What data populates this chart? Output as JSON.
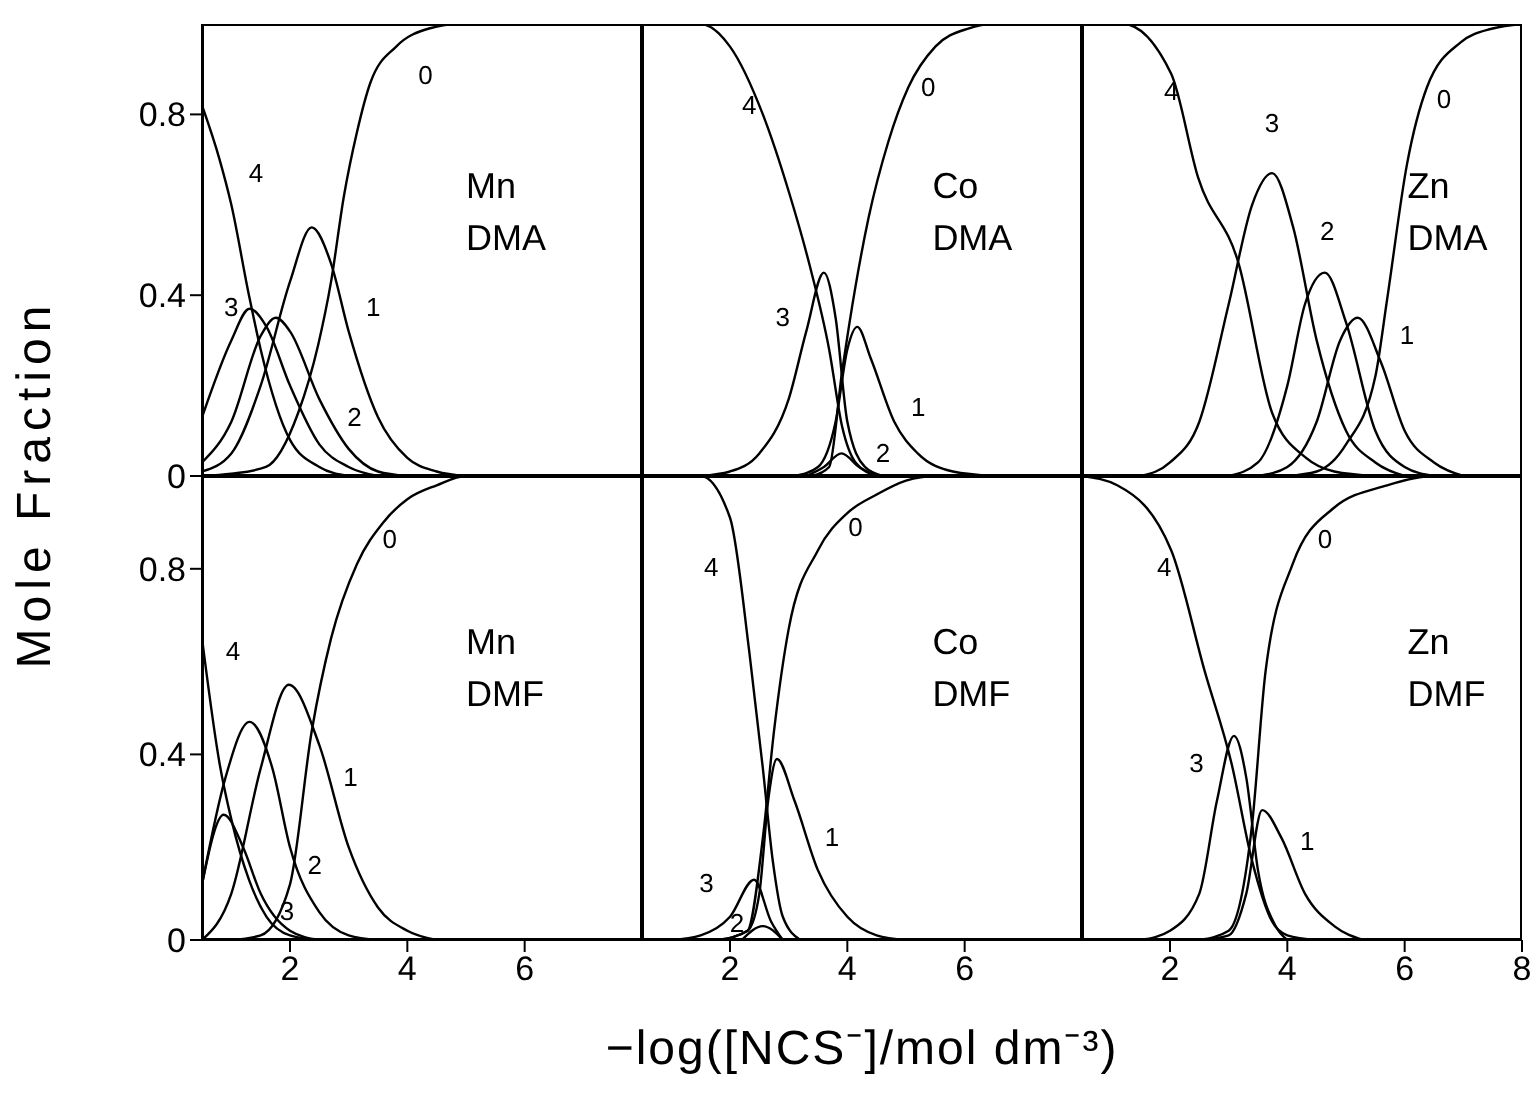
{
  "chart_data": [
    {
      "type": "line",
      "ylabel": "Mole Fraction",
      "xlim": [
        0.5,
        8
      ],
      "xticks": [
        2,
        4,
        6
      ],
      "ylim": [
        0,
        1
      ],
      "yticks": [
        0,
        0.4,
        0.8
      ],
      "tick_labels": "y",
      "annotations": [
        "Mn",
        "DMA"
      ],
      "series": [
        {
          "name": "0",
          "color": "#000000",
          "x": [
            0.5,
            1.0,
            1.59,
            2.14,
            2.48,
            2.7,
            2.92,
            3.14,
            3.37,
            3.81,
            4.37,
            4.9,
            8
          ],
          "values": [
            0,
            0.005,
            0.02,
            0.14,
            0.29,
            0.43,
            0.62,
            0.76,
            0.87,
            0.95,
            0.99,
            1,
            1
          ]
        },
        {
          "name": "1",
          "color": "#000000",
          "x": [
            0.5,
            1.0,
            1.5,
            2.0,
            2.37,
            2.7,
            3.0,
            3.5,
            4.0,
            4.5,
            5
          ],
          "values": [
            0.01,
            0.05,
            0.2,
            0.43,
            0.55,
            0.47,
            0.32,
            0.13,
            0.04,
            0.01,
            0
          ]
        },
        {
          "name": "2",
          "color": "#000000",
          "x": [
            0.5,
            1.0,
            1.5,
            1.76,
            2.0,
            2.5,
            3.0,
            3.5,
            4
          ],
          "values": [
            0.03,
            0.12,
            0.31,
            0.35,
            0.32,
            0.17,
            0.06,
            0.01,
            0
          ]
        },
        {
          "name": "3",
          "color": "#000000",
          "x": [
            0.5,
            1.0,
            1.31,
            1.6,
            2.0,
            2.5,
            3.0,
            3.5
          ],
          "values": [
            0.13,
            0.3,
            0.37,
            0.33,
            0.2,
            0.07,
            0.02,
            0
          ]
        },
        {
          "name": "4",
          "color": "#000000",
          "x": [
            0.5,
            0.8,
            1.0,
            1.3,
            1.5,
            2.0,
            2.5,
            3.0
          ],
          "values": [
            0.82,
            0.7,
            0.6,
            0.4,
            0.28,
            0.08,
            0.02,
            0
          ]
        }
      ]
    },
    {
      "type": "line",
      "xlim": [
        0.5,
        8
      ],
      "xticks": [
        2,
        4,
        6
      ],
      "ylim": [
        0,
        1
      ],
      "yticks": [
        0,
        0.4,
        0.8
      ],
      "tick_labels": false,
      "annotations": [
        "Co",
        "DMA"
      ],
      "series": [
        {
          "name": "0",
          "color": "#000000",
          "x": [
            3.4,
            3.69,
            3.91,
            4.14,
            4.36,
            4.7,
            5.04,
            5.5,
            6.06,
            6.5,
            8
          ],
          "values": [
            0,
            0.02,
            0.23,
            0.42,
            0.57,
            0.74,
            0.86,
            0.95,
            0.99,
            1,
            1
          ]
        },
        {
          "name": "1",
          "color": "#000000",
          "x": [
            3.1,
            3.5,
            3.8,
            4.0,
            4.17,
            4.4,
            4.8,
            5.2,
            5.8,
            6.5
          ],
          "values": [
            0,
            0.02,
            0.12,
            0.28,
            0.33,
            0.26,
            0.12,
            0.05,
            0.01,
            0
          ]
        },
        {
          "name": "3",
          "color": "#000000",
          "x": [
            1.5,
            2.0,
            2.5,
            3.0,
            3.3,
            3.6,
            3.8,
            4.0,
            4.3,
            4.6
          ],
          "values": [
            0,
            0.01,
            0.05,
            0.17,
            0.32,
            0.45,
            0.35,
            0.12,
            0.02,
            0
          ]
        },
        {
          "name": "4",
          "color": "#000000",
          "x": [
            0.5,
            1.5,
            2.0,
            2.56,
            3.0,
            3.35,
            3.69,
            3.91,
            4.14,
            4.5
          ],
          "values": [
            1,
            1,
            0.95,
            0.8,
            0.63,
            0.47,
            0.28,
            0.11,
            0.03,
            0
          ]
        },
        {
          "name": "2",
          "color": "#000000",
          "x": [
            3.3,
            3.6,
            3.9,
            4.2,
            4.5
          ],
          "values": [
            0,
            0.02,
            0.05,
            0.02,
            0
          ]
        }
      ]
    },
    {
      "type": "line",
      "xlim": [
        0.5,
        8
      ],
      "xticks": [
        2,
        4,
        6,
        8
      ],
      "ylim": [
        0,
        1
      ],
      "yticks": [
        0,
        0.4,
        0.8
      ],
      "tick_labels": false,
      "annotations": [
        "Zn",
        "DMA"
      ],
      "series": [
        {
          "name": "0",
          "color": "#000000",
          "x": [
            4.0,
            4.5,
            5.0,
            5.5,
            5.7,
            6.04,
            6.38,
            6.96,
            7.5,
            8
          ],
          "values": [
            0,
            0.01,
            0.07,
            0.22,
            0.39,
            0.69,
            0.86,
            0.96,
            0.99,
            1
          ]
        },
        {
          "name": "1",
          "color": "#000000",
          "x": [
            3.5,
            4.0,
            4.5,
            4.9,
            5.2,
            5.6,
            6.0,
            6.5,
            7
          ],
          "values": [
            0,
            0.02,
            0.12,
            0.3,
            0.35,
            0.25,
            0.1,
            0.03,
            0
          ]
        },
        {
          "name": "2",
          "color": "#000000",
          "x": [
            3.0,
            3.5,
            4.0,
            4.3,
            4.64,
            5.0,
            5.5,
            6.0,
            6.5
          ],
          "values": [
            0,
            0.03,
            0.2,
            0.38,
            0.45,
            0.34,
            0.1,
            0.02,
            0
          ]
        },
        {
          "name": "3",
          "color": "#000000",
          "x": [
            1.5,
            2.0,
            2.5,
            3.0,
            3.4,
            3.74,
            4.1,
            4.5,
            5.0,
            5.5,
            6
          ],
          "values": [
            0,
            0.03,
            0.12,
            0.38,
            0.6,
            0.67,
            0.55,
            0.3,
            0.1,
            0.03,
            0
          ]
        },
        {
          "name": "4",
          "color": "#000000",
          "x": [
            0.5,
            1.2,
            2.02,
            2.48,
            3.17,
            3.74,
            4.32,
            4.8,
            5.5
          ],
          "values": [
            1,
            1,
            0.89,
            0.66,
            0.47,
            0.14,
            0.04,
            0.01,
            0
          ]
        }
      ]
    },
    {
      "type": "line",
      "xlim": [
        0.5,
        8
      ],
      "xticks": [
        2,
        4,
        6
      ],
      "ylim": [
        0,
        1
      ],
      "yticks": [
        0,
        0.4,
        0.8
      ],
      "annotations": [
        "Mn",
        "DMF"
      ],
      "series": [
        {
          "name": "0",
          "color": "#000000",
          "x": [
            1.0,
            1.5,
            2.0,
            2.37,
            2.7,
            3.14,
            3.59,
            4.0,
            4.5,
            5,
            8
          ],
          "values": [
            0,
            0.01,
            0.12,
            0.45,
            0.65,
            0.81,
            0.9,
            0.95,
            0.98,
            1,
            1
          ]
        },
        {
          "name": "1",
          "color": "#000000",
          "x": [
            0.5,
            1.0,
            1.5,
            1.98,
            2.5,
            3.0,
            3.5,
            4.0,
            4.5
          ],
          "values": [
            0,
            0.1,
            0.37,
            0.55,
            0.42,
            0.2,
            0.07,
            0.02,
            0
          ]
        },
        {
          "name": "2",
          "color": "#000000",
          "x": [
            0.5,
            0.9,
            1.31,
            1.7,
            2.0,
            2.5,
            3.0,
            3.5
          ],
          "values": [
            0.12,
            0.35,
            0.47,
            0.37,
            0.2,
            0.06,
            0.01,
            0
          ]
        },
        {
          "name": "3",
          "color": "#000000",
          "x": [
            0.5,
            0.87,
            1.2,
            1.5,
            2.0,
            2.5
          ],
          "values": [
            0.12,
            0.27,
            0.2,
            0.1,
            0.02,
            0
          ]
        },
        {
          "name": "4",
          "color": "#000000",
          "x": [
            0.5,
            0.8,
            1.0,
            1.3,
            1.6,
            2.0,
            2.5
          ],
          "values": [
            0.65,
            0.38,
            0.26,
            0.13,
            0.05,
            0.01,
            0
          ]
        }
      ]
    },
    {
      "type": "line",
      "xlabel": "−log([NCS⁻]/mol dm⁻³)",
      "xlim": [
        0.5,
        8
      ],
      "xticks": [
        2,
        4,
        6
      ],
      "ylim": [
        0,
        1
      ],
      "yticks": [
        0,
        0.4,
        0.8
      ],
      "tick_labels": "x",
      "annotations": [
        "Co",
        "DMF"
      ],
      "series": [
        {
          "name": "0",
          "color": "#000000",
          "x": [
            1.8,
            2.3,
            2.56,
            2.75,
            3.0,
            3.5,
            4.0,
            4.5,
            5.0,
            5.5,
            8
          ],
          "values": [
            0,
            0.02,
            0.22,
            0.45,
            0.67,
            0.84,
            0.92,
            0.96,
            0.99,
            1,
            1
          ]
        },
        {
          "name": "1",
          "color": "#000000",
          "x": [
            1.8,
            2.3,
            2.5,
            2.65,
            2.8,
            3.1,
            3.5,
            4.0,
            4.5,
            5
          ],
          "values": [
            0,
            0.02,
            0.1,
            0.3,
            0.39,
            0.3,
            0.15,
            0.05,
            0.01,
            0
          ]
        },
        {
          "name": "3",
          "color": "#000000",
          "x": [
            1.0,
            1.5,
            2.0,
            2.41,
            2.7,
            2.9
          ],
          "values": [
            0,
            0.01,
            0.05,
            0.13,
            0.04,
            0
          ]
        },
        {
          "name": "4",
          "color": "#000000",
          "x": [
            0.5,
            1.5,
            2.0,
            2.33,
            2.56,
            2.73,
            2.9,
            3.2
          ],
          "values": [
            1,
            1,
            0.91,
            0.62,
            0.37,
            0.17,
            0.05,
            0
          ]
        },
        {
          "name": "2",
          "color": "#000000",
          "x": [
            2.2,
            2.56,
            2.9
          ],
          "values": [
            0,
            0.03,
            0
          ]
        }
      ]
    },
    {
      "type": "line",
      "xlim": [
        0.5,
        8
      ],
      "xticks": [
        2,
        4,
        6,
        8
      ],
      "ylim": [
        0,
        1
      ],
      "yticks": [
        0,
        0.4,
        0.8
      ],
      "tick_labels": "x",
      "annotations": [
        "Zn",
        "DMF"
      ],
      "series": [
        {
          "name": "0",
          "color": "#000000",
          "x": [
            2.5,
            3.0,
            3.4,
            3.63,
            4.09,
            4.78,
            5.7,
            6.5,
            8
          ],
          "values": [
            0,
            0.02,
            0.25,
            0.58,
            0.81,
            0.93,
            0.98,
            1,
            1
          ]
        },
        {
          "name": "1",
          "color": "#000000",
          "x": [
            2.5,
            3.0,
            3.3,
            3.57,
            3.9,
            4.3,
            4.8,
            5.3
          ],
          "values": [
            0,
            0.01,
            0.1,
            0.28,
            0.22,
            0.1,
            0.03,
            0
          ]
        },
        {
          "name": "3",
          "color": "#000000",
          "x": [
            1.5,
            2.0,
            2.5,
            2.8,
            3.09,
            3.3,
            3.5,
            3.8,
            4.0
          ],
          "values": [
            0,
            0.02,
            0.1,
            0.3,
            0.44,
            0.35,
            0.15,
            0.03,
            0
          ]
        },
        {
          "name": "4",
          "color": "#000000",
          "x": [
            0.5,
            1.1,
            2.02,
            2.59,
            3.05,
            3.4,
            3.74,
            4.0,
            4.5
          ],
          "values": [
            1,
            0.98,
            0.84,
            0.58,
            0.38,
            0.17,
            0.04,
            0.01,
            0
          ]
        }
      ]
    }
  ]
}
